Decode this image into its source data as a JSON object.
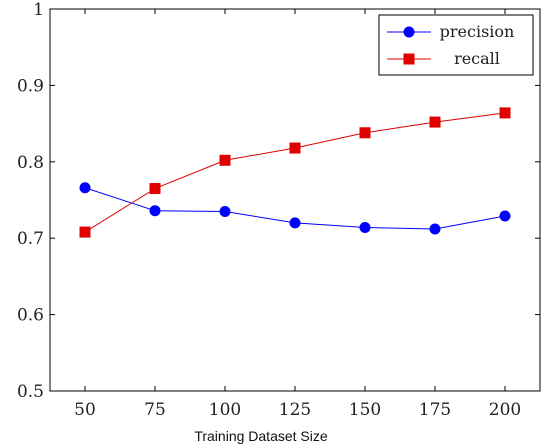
{
  "chart_data": {
    "type": "line",
    "xlabel": "Training Dataset Size",
    "ylabel": "",
    "title": "",
    "x": [
      50,
      75,
      100,
      125,
      150,
      175,
      200
    ],
    "xticks": [
      "50",
      "75",
      "100",
      "125",
      "150",
      "175",
      "200"
    ],
    "ylim": [
      0.5,
      1.0
    ],
    "yticks": [
      "0.5",
      "0.6",
      "0.7",
      "0.8",
      "0.9",
      "1"
    ],
    "grid": false,
    "legend_position": "top-right",
    "series": [
      {
        "name": "precision",
        "color": "#0000ff",
        "marker": "circle",
        "values": [
          0.766,
          0.736,
          0.735,
          0.72,
          0.714,
          0.712,
          0.729
        ]
      },
      {
        "name": "recall",
        "color": "#e00000",
        "marker": "square",
        "values": [
          0.708,
          0.765,
          0.802,
          0.818,
          0.838,
          0.852,
          0.864
        ]
      }
    ]
  }
}
